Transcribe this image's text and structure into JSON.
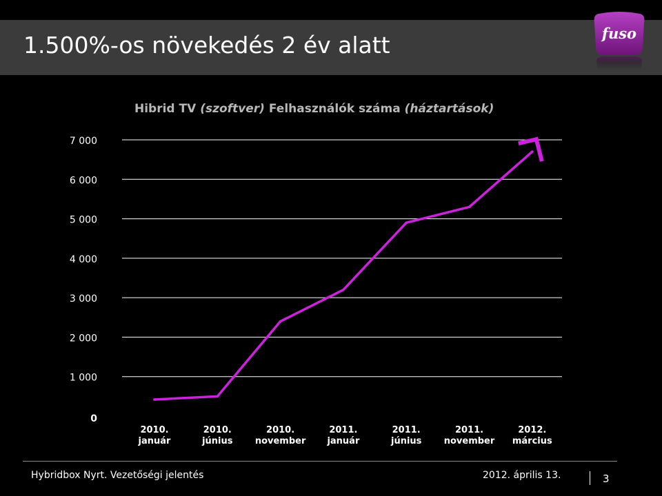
{
  "slide": {
    "title": "1.500%-os növekedés 2 év alatt",
    "logo_text": "fuso",
    "logo_color": "#8e1f9a"
  },
  "footer": {
    "left": "Hybridbox Nyrt.  Vezetőségi jelentés",
    "date": "2012. április 13.",
    "page": "3"
  },
  "chart_data": {
    "type": "line",
    "title_parts": [
      {
        "text": "Hibrid TV ",
        "italic": false
      },
      {
        "text": "(szoftver)",
        "italic": true
      },
      {
        "text": " Felhasználók száma ",
        "italic": false
      },
      {
        "text": "(háztartások)",
        "italic": true
      }
    ],
    "categories": [
      [
        "2010.",
        "január"
      ],
      [
        "2010.",
        "június"
      ],
      [
        "2010.",
        "november"
      ],
      [
        "2011.",
        "január"
      ],
      [
        "2011.",
        "június"
      ],
      [
        "2011.",
        "november"
      ],
      [
        "2012.",
        "március"
      ]
    ],
    "y_ticks": [
      {
        "value": 0,
        "label": "0"
      },
      {
        "value": 1000,
        "label": "1 000"
      },
      {
        "value": 2000,
        "label": "2 000"
      },
      {
        "value": 3000,
        "label": "3 000"
      },
      {
        "value": 4000,
        "label": "4 000"
      },
      {
        "value": 5000,
        "label": "5 000"
      },
      {
        "value": 6000,
        "label": "6 000"
      },
      {
        "value": 7000,
        "label": "7 000"
      }
    ],
    "ylim": [
      0,
      7000
    ],
    "grid": true,
    "series": [
      {
        "values": [
          420,
          500,
          2400,
          3200,
          4900,
          5300,
          6700
        ],
        "color": "#cc22dd"
      }
    ],
    "arrow_color": "#cc22dd",
    "title_color": "#b8b8b8",
    "label_color": "#ffffff",
    "grid_color": "#ffffff"
  }
}
